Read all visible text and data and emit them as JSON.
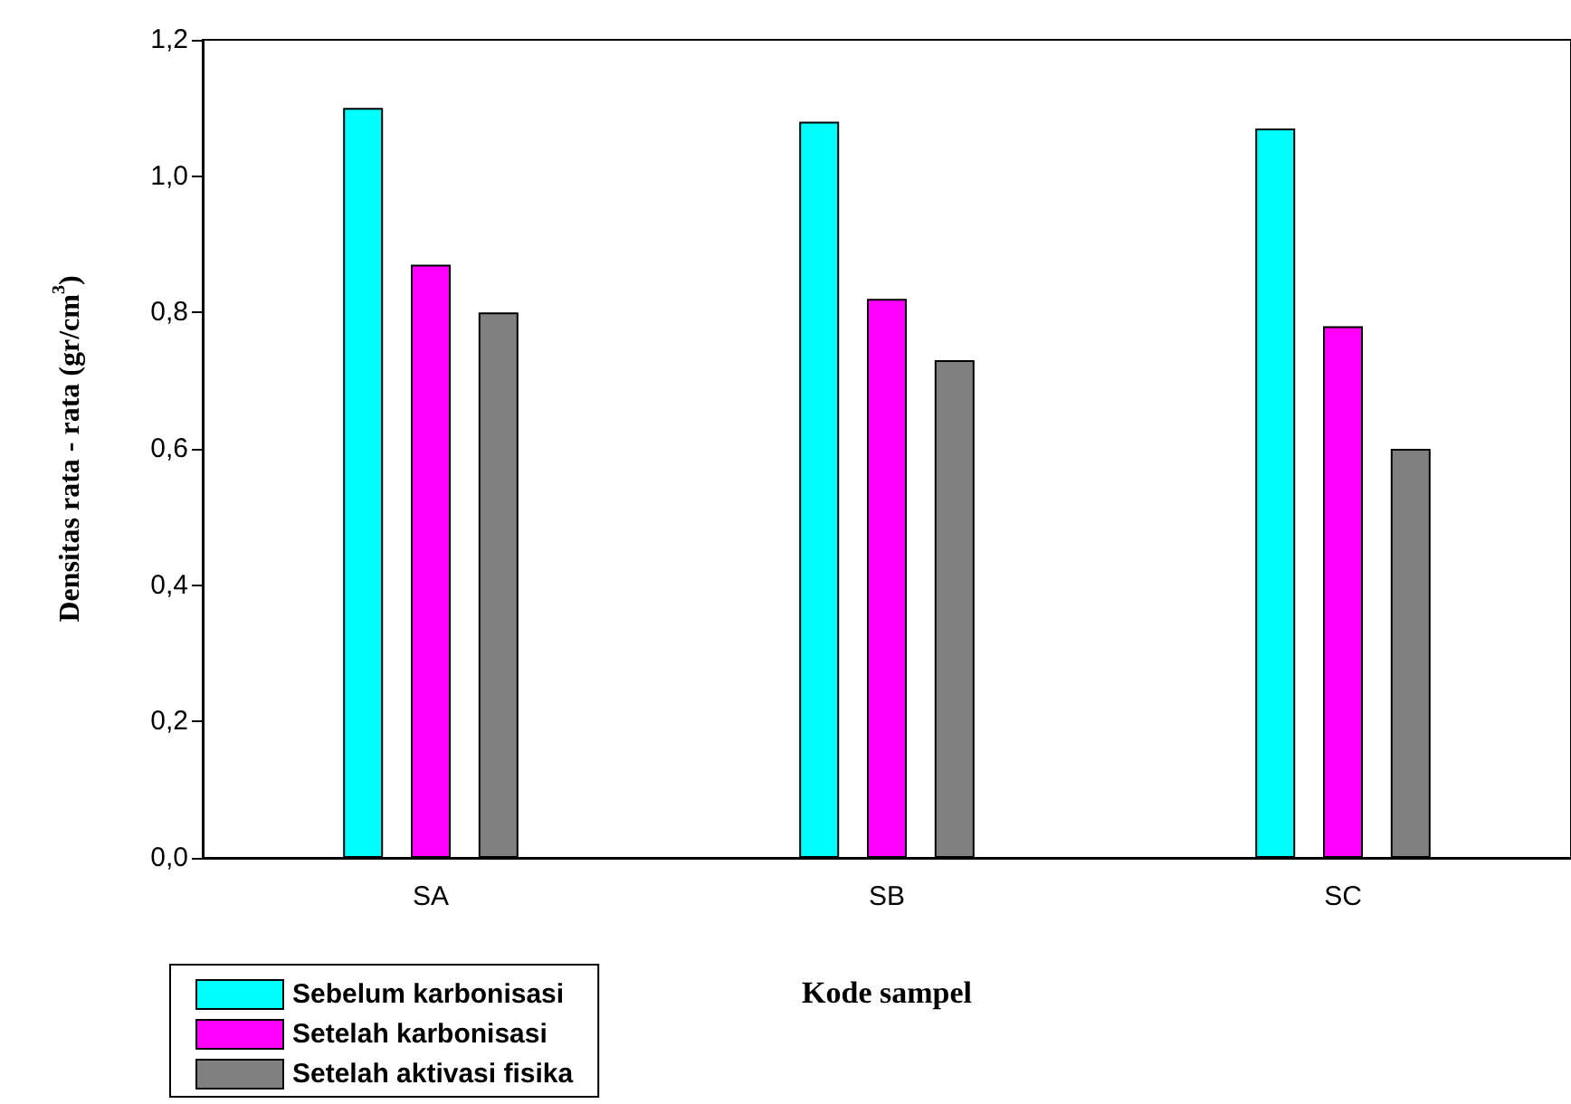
{
  "chart_data": {
    "type": "bar",
    "xlabel": "Kode sampel",
    "ylabel": "Densitas rata - rata (gr/cm$^{3}$)",
    "categories": [
      "SA",
      "SB",
      "SC"
    ],
    "series": [
      {
        "name": "Sebelum karbonisasi",
        "color": "#00ffff",
        "values": [
          1.1,
          1.08,
          1.07
        ]
      },
      {
        "name": "Setelah karbonisasi",
        "color": "#ff00ff",
        "values": [
          0.87,
          0.82,
          0.78
        ]
      },
      {
        "name": "Setelah aktivasi fisika",
        "color": "#808080",
        "values": [
          0.8,
          0.73,
          0.6
        ]
      }
    ],
    "ylim": [
      0,
      1.2
    ],
    "yticks": [
      {
        "value": 0,
        "label": "0,0"
      },
      {
        "value": 0.2,
        "label": "0,2"
      },
      {
        "value": 0.4,
        "label": "0,4"
      },
      {
        "value": 0.6,
        "label": "0,6"
      },
      {
        "value": 0.8,
        "label": "0,8"
      },
      {
        "value": 1.0,
        "label": "1,0"
      },
      {
        "value": 1.2,
        "label": "1,2"
      }
    ],
    "grid": false,
    "legend": "bottom left"
  }
}
